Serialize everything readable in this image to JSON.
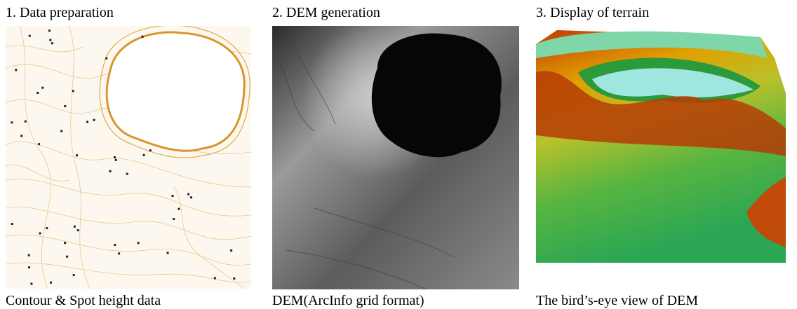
{
  "panels": [
    {
      "title": "1. Data preparation",
      "caption": "Contour & Spot height data"
    },
    {
      "title": "2. DEM generation",
      "caption": "DEM(ArcInfo grid format)"
    },
    {
      "title": "3. Display of terrain",
      "caption": "The bird’s-eye view of DEM"
    }
  ]
}
